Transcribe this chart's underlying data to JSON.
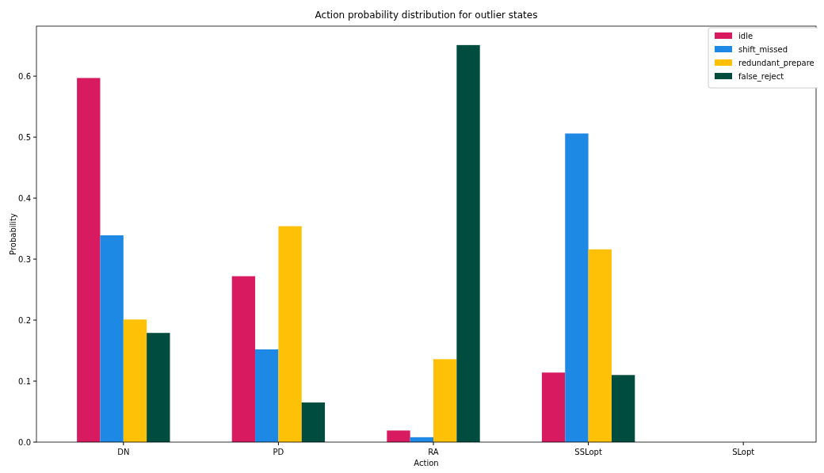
{
  "chart_data": {
    "type": "bar",
    "title": "Action probability distribution for outlier states",
    "xlabel": "Action",
    "ylabel": "Probability",
    "categories": [
      "DN",
      "PD",
      "RA",
      "SSLopt",
      "SLopt"
    ],
    "series": [
      {
        "name": "idle",
        "color": "#d81b60",
        "values": [
          0.597,
          0.272,
          0.019,
          0.114,
          0
        ]
      },
      {
        "name": "shift_missed",
        "color": "#1e88e5",
        "values": [
          0.339,
          0.152,
          0.008,
          0.506,
          0
        ]
      },
      {
        "name": "redundant_prepare",
        "color": "#ffc107",
        "values": [
          0.201,
          0.354,
          0.136,
          0.316,
          0
        ]
      },
      {
        "name": "false_reject",
        "color": "#004d40",
        "values": [
          0.179,
          0.065,
          0.651,
          0.11,
          0
        ]
      }
    ],
    "ylim": [
      0,
      0.682
    ],
    "yticks": [
      {
        "value": 0,
        "label": "0.0"
      },
      {
        "value": 0.1,
        "label": "0.1"
      },
      {
        "value": 0.2,
        "label": "0.2"
      },
      {
        "value": 0.3,
        "label": "0.3"
      },
      {
        "value": 0.4,
        "label": "0.4"
      },
      {
        "value": 0.5,
        "label": "0.5"
      },
      {
        "value": 0.6,
        "label": "0.6"
      }
    ],
    "grid": false,
    "legend": "top right"
  }
}
